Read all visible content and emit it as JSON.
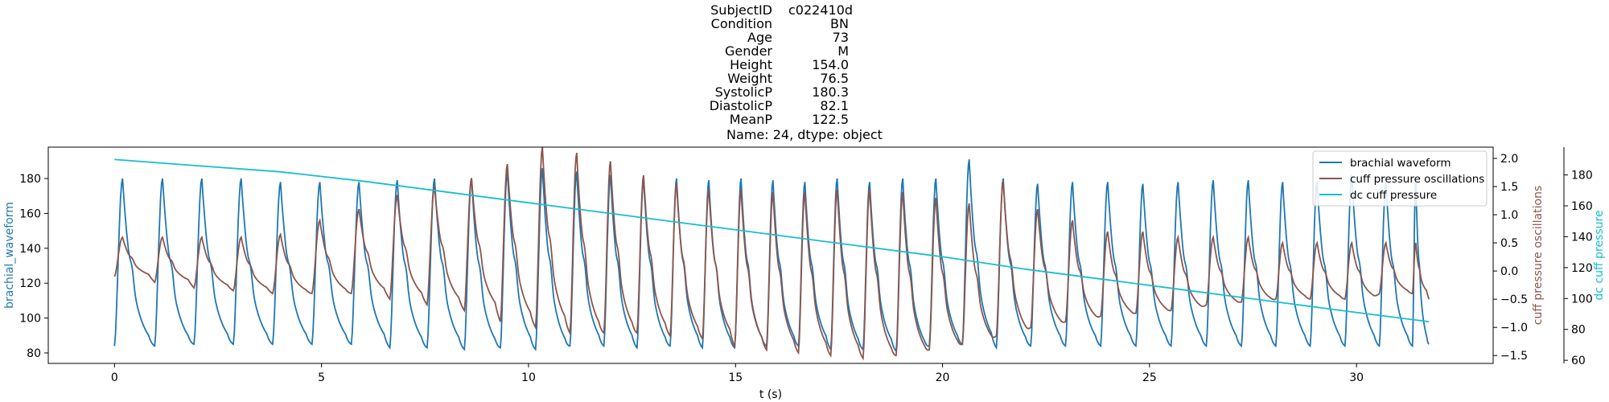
{
  "title": {
    "rows": [
      {
        "key": "SubjectID",
        "value": "c022410d"
      },
      {
        "key": "Condition",
        "value": "BN"
      },
      {
        "key": "Age",
        "value": "73"
      },
      {
        "key": "Gender",
        "value": "M"
      },
      {
        "key": "Height",
        "value": "154.0"
      },
      {
        "key": "Weight",
        "value": "76.5"
      },
      {
        "key": "SystolicP",
        "value": "180.3"
      },
      {
        "key": "DiastolicP",
        "value": "82.1"
      },
      {
        "key": "MeanP",
        "value": "122.5"
      }
    ],
    "footer": "Name: 24, dtype: object"
  },
  "colors": {
    "brachial": "#1f77b4",
    "cuff_osc": "#8c564b",
    "dc_cuff": "#17becf"
  },
  "chart_data": {
    "type": "line",
    "xlabel": "t (s)",
    "xlim": [
      -1.6,
      33.3
    ],
    "xticks": [
      0,
      5,
      10,
      15,
      20,
      25,
      30
    ],
    "grid": false,
    "legend_position": "top-right",
    "axes": {
      "left": {
        "label": "brachial_waveform",
        "ylim": [
          74,
          198
        ],
        "ticks": [
          80,
          100,
          120,
          140,
          160,
          180
        ]
      },
      "right1": {
        "label": "cuff pressure oscillations",
        "ylim": [
          -1.64,
          2.2
        ],
        "ticks": [
          -1.5,
          -1.0,
          -0.5,
          0.0,
          0.5,
          1.0,
          1.5,
          2.0
        ],
        "tick_labels": [
          "−1.5",
          "−1.0",
          "−0.5",
          "0.0",
          "0.5",
          "1.0",
          "1.5",
          "2.0"
        ]
      },
      "right2": {
        "label": "dc cuff pressure",
        "ylim": [
          58,
          198
        ],
        "ticks": [
          60,
          80,
          100,
          120,
          140,
          160,
          180
        ]
      }
    },
    "series": [
      {
        "name": "brachial waveform",
        "axis": "left",
        "color": "#1f77b4",
        "beat_times": [
          0.0,
          0.97,
          1.92,
          2.87,
          3.82,
          4.77,
          5.72,
          6.65,
          7.55,
          8.45,
          9.32,
          10.17,
          11.0,
          11.82,
          12.62,
          13.42,
          14.2,
          14.98,
          15.75,
          16.52,
          17.3,
          18.08,
          18.88,
          19.68,
          20.48,
          21.3,
          22.13,
          22.97,
          23.82,
          24.67,
          25.52,
          26.37,
          27.22,
          28.05,
          28.88,
          29.72,
          30.55,
          31.35
        ],
        "peaks": [
          180,
          180,
          180,
          180,
          178,
          178,
          178,
          179,
          180,
          180,
          184,
          186,
          184,
          182,
          180,
          180,
          179,
          180,
          179,
          178,
          180,
          178,
          180,
          180,
          191,
          180,
          177,
          178,
          178,
          177,
          178,
          179,
          179,
          178,
          178,
          182,
          178,
          179
        ],
        "troughs": [
          84,
          84,
          85,
          85,
          85,
          85,
          85,
          83,
          83,
          82,
          83,
          82,
          84,
          84,
          83,
          84,
          83,
          83,
          84,
          84,
          82,
          82,
          81,
          84,
          85,
          83,
          84,
          84,
          84,
          84,
          84,
          84,
          84,
          84,
          84,
          84,
          84,
          84
        ],
        "end_value": 85,
        "end_time": 31.75
      },
      {
        "name": "cuff pressure oscillations",
        "axis": "right1",
        "color": "#8c564b",
        "beat_times": [
          0.0,
          0.97,
          1.92,
          2.87,
          3.82,
          4.77,
          5.72,
          6.65,
          7.55,
          8.45,
          9.32,
          10.17,
          11.0,
          11.82,
          12.62,
          13.42,
          14.2,
          14.98,
          15.75,
          16.52,
          17.3,
          18.08,
          18.88,
          19.68,
          20.48,
          21.3,
          22.13,
          22.97,
          23.82,
          24.67,
          25.52,
          26.37,
          27.22,
          28.05,
          28.88,
          29.72,
          30.55,
          31.35
        ],
        "peaks": [
          0.6,
          0.6,
          0.6,
          0.6,
          0.65,
          0.9,
          1.1,
          1.35,
          1.5,
          1.65,
          1.9,
          2.2,
          2.1,
          1.95,
          1.7,
          1.55,
          1.45,
          1.45,
          1.4,
          1.4,
          1.45,
          1.45,
          1.4,
          1.3,
          1.2,
          1.6,
          1.1,
          0.9,
          0.7,
          0.7,
          0.6,
          0.6,
          0.6,
          0.5,
          0.5,
          0.5,
          0.5,
          0.5
        ],
        "troughs": [
          -0.1,
          -0.2,
          -0.3,
          -0.35,
          -0.4,
          -0.4,
          -0.4,
          -0.5,
          -0.6,
          -0.7,
          -0.9,
          -1.0,
          -1.1,
          -1.1,
          -1.1,
          -1.15,
          -1.2,
          -1.35,
          -1.4,
          -1.45,
          -1.5,
          -1.55,
          -1.5,
          -1.4,
          -1.3,
          -1.15,
          -1.0,
          -0.9,
          -0.8,
          -0.75,
          -0.7,
          -0.6,
          -0.55,
          -0.5,
          -0.5,
          -0.5,
          -0.4,
          -0.4
        ],
        "end_value": -0.5,
        "end_time": 31.75
      },
      {
        "name": "dc cuff pressure",
        "axis": "right2",
        "color": "#17becf",
        "x": [
          0,
          2,
          4,
          6,
          8,
          10,
          12,
          14,
          16,
          18,
          20,
          22,
          24,
          26,
          28,
          30,
          31.75
        ],
        "y": [
          190,
          186,
          182,
          176,
          169,
          162,
          155,
          148,
          141,
          134,
          127,
          119,
          112,
          105,
          98,
          91,
          85
        ]
      }
    ]
  }
}
